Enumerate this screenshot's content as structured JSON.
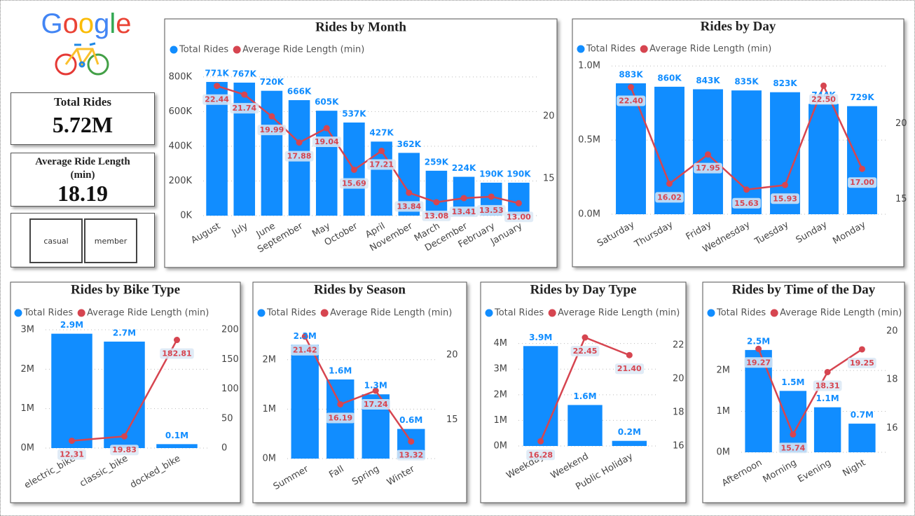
{
  "logo": "Google",
  "cards": {
    "total_rides": {
      "label": "Total Rides",
      "value": "5.72M"
    },
    "avg_ride_length": {
      "label": "Average Ride Length (min)",
      "value": "18.19"
    }
  },
  "slicer": [
    "casual",
    "member"
  ],
  "chart_data": [
    {
      "type": "combo",
      "title": "Rides by Month",
      "categories": [
        "August",
        "July",
        "June",
        "September",
        "May",
        "October",
        "April",
        "November",
        "March",
        "December",
        "February",
        "January"
      ],
      "series": [
        {
          "name": "Total Rides",
          "color": "#118DFF",
          "values": [
            771000,
            767000,
            720000,
            666000,
            605000,
            537000,
            427000,
            362000,
            259000,
            224000,
            190000,
            190000
          ],
          "value_labels": [
            "771K",
            "767K",
            "720K",
            "666K",
            "605K",
            "537K",
            "427K",
            "362K",
            "259K",
            "224K",
            "190K",
            "190K"
          ]
        },
        {
          "name": "Average Ride Length (min)",
          "color": "#D64550",
          "axis": "y2",
          "values": [
            22.44,
            21.74,
            19.99,
            17.88,
            19.04,
            15.69,
            17.21,
            13.84,
            13.08,
            13.41,
            13.53,
            13.0
          ],
          "value_labels": [
            "22.44",
            "21.74",
            "19.99",
            "17.88",
            "19.04",
            "15.69",
            "17.21",
            "13.84",
            "13.08",
            "13.41",
            "13.53",
            "13.00"
          ]
        }
      ],
      "ylim": [
        0,
        860000
      ],
      "yticks": [
        {
          "value": 0,
          "label": "0K"
        },
        {
          "value": 200000,
          "label": "200K"
        },
        {
          "value": 400000,
          "label": "400K"
        },
        {
          "value": 600000,
          "label": "600K"
        },
        {
          "value": 800000,
          "label": "800K"
        }
      ],
      "y2lim": [
        12,
        24
      ],
      "y2ticks": [
        15,
        20
      ],
      "grid": true
    },
    {
      "type": "combo",
      "title": "Rides by Day",
      "categories": [
        "Saturday",
        "Thursday",
        "Friday",
        "Wednesday",
        "Tuesday",
        "Sunday",
        "Monday"
      ],
      "series": [
        {
          "name": "Total Rides",
          "color": "#118DFF",
          "values": [
            883000,
            860000,
            843000,
            835000,
            823000,
            744000,
            729000
          ],
          "value_labels": [
            "883K",
            "860K",
            "843K",
            "835K",
            "823K",
            "744K",
            "729K"
          ]
        },
        {
          "name": "Average Ride Length (min)",
          "color": "#D64550",
          "axis": "y2",
          "values": [
            22.4,
            16.02,
            17.95,
            15.63,
            15.93,
            22.5,
            17.0
          ],
          "value_labels": [
            "22.40",
            "16.02",
            "17.95",
            "15.63",
            "15.93",
            "22.50",
            "17.00"
          ]
        }
      ],
      "ylim": [
        0,
        1020000
      ],
      "yticks": [
        {
          "value": 0,
          "label": "0.0M"
        },
        {
          "value": 500000,
          "label": "0.5M"
        },
        {
          "value": 1000000,
          "label": "1.0M"
        }
      ],
      "y2lim": [
        14,
        24
      ],
      "y2ticks": [
        15,
        20
      ],
      "grid": true
    },
    {
      "type": "combo",
      "title": "Rides by Bike Type",
      "categories": [
        "electric_bike",
        "classic_bike",
        "docked_bike"
      ],
      "series": [
        {
          "name": "Total Rides",
          "color": "#118DFF",
          "values": [
            2900000,
            2700000,
            100000
          ],
          "value_labels": [
            "2.9M",
            "2.7M",
            "0.1M"
          ]
        },
        {
          "name": "Average Ride Length (min)",
          "color": "#D64550",
          "axis": "y2",
          "values": [
            12.31,
            19.83,
            182.81
          ]
        }
      ],
      "ylim": [
        0,
        3000000
      ],
      "yticks": [
        {
          "value": 0,
          "label": "0M"
        },
        {
          "value": 1000000,
          "label": "1M"
        },
        {
          "value": 2000000,
          "label": "2M"
        },
        {
          "value": 3000000,
          "label": "3M"
        }
      ],
      "y2lim": [
        0,
        200
      ],
      "y2ticks": [
        0,
        50,
        100,
        150,
        200
      ],
      "grid": true
    },
    {
      "type": "combo",
      "title": "Rides by Season",
      "categories": [
        "Summer",
        "Fall",
        "Spring",
        "Winter"
      ],
      "series": [
        {
          "name": "Total Rides",
          "color": "#118DFF",
          "values": [
            2300000,
            1600000,
            1300000,
            600000
          ],
          "value_labels": [
            "2.3M",
            "1.6M",
            "1.3M",
            "0.6M"
          ]
        },
        {
          "name": "Average Ride Length (min)",
          "color": "#D64550",
          "axis": "y2",
          "values": [
            21.42,
            16.19,
            17.24,
            13.32
          ]
        }
      ],
      "ylim": [
        0,
        2620000
      ],
      "yticks": [
        {
          "value": 0,
          "label": "0M"
        },
        {
          "value": 1000000,
          "label": "1M"
        },
        {
          "value": 2000000,
          "label": "2M"
        }
      ],
      "y2lim": [
        12,
        22
      ],
      "y2ticks": [
        15,
        20
      ],
      "grid": true
    },
    {
      "type": "combo",
      "title": "Rides by Day Type",
      "categories": [
        "Weekday",
        "Weekend",
        "Public Holiday"
      ],
      "series": [
        {
          "name": "Total Rides",
          "color": "#118DFF",
          "values": [
            3900000,
            1600000,
            200000
          ],
          "value_labels": [
            "3.9M",
            "1.6M",
            "0.2M"
          ]
        },
        {
          "name": "Average Ride Length (min)",
          "color": "#D64550",
          "axis": "y2",
          "values": [
            16.28,
            22.45,
            21.4
          ],
          "value_labels": [
            "16.28",
            "22.45",
            "21.40"
          ]
        }
      ],
      "ylim": [
        0,
        4400000
      ],
      "yticks": [
        {
          "value": 0,
          "label": "0M"
        },
        {
          "value": 1000000,
          "label": "1M"
        },
        {
          "value": 2000000,
          "label": "2M"
        },
        {
          "value": 3000000,
          "label": "3M"
        },
        {
          "value": 4000000,
          "label": "4M"
        }
      ],
      "y2lim": [
        16,
        22.7
      ],
      "y2ticks": [
        16,
        18,
        20,
        22
      ],
      "grid": true
    },
    {
      "type": "combo",
      "title": "Rides by Time of the Day",
      "categories": [
        "Afternoon",
        "Morning",
        "Evening",
        "Night"
      ],
      "series": [
        {
          "name": "Total Rides",
          "color": "#118DFF",
          "values": [
            2500000,
            1500000,
            1100000,
            700000
          ],
          "value_labels": [
            "2.5M",
            "1.5M",
            "1.1M",
            "0.7M"
          ]
        },
        {
          "name": "Average Ride Length (min)",
          "color": "#D64550",
          "axis": "y2",
          "values": [
            19.27,
            15.74,
            18.31,
            19.25
          ]
        }
      ],
      "ylim": [
        0,
        2960000
      ],
      "yticks": [
        {
          "value": 0,
          "label": "0M"
        },
        {
          "value": 1000000,
          "label": "1M"
        },
        {
          "value": 2000000,
          "label": "2M"
        }
      ],
      "y2lim": [
        15,
        20
      ],
      "y2ticks": [
        16,
        18,
        20
      ],
      "grid": true
    }
  ]
}
